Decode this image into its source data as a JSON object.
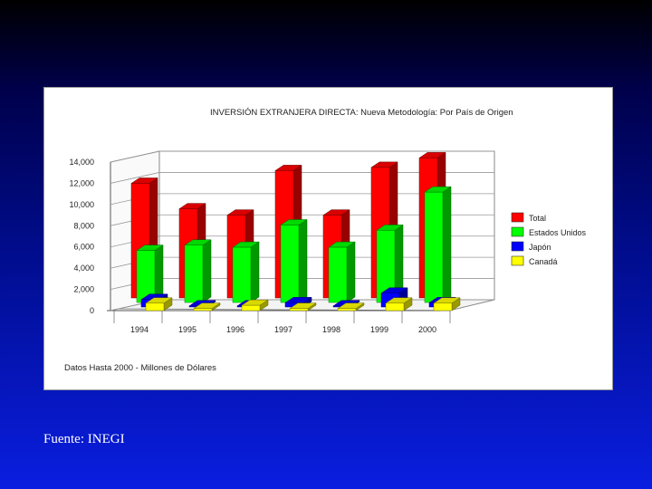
{
  "source": "Fuente: INEGI",
  "chart_data": {
    "type": "bar",
    "title": "INVERSIÓN EXTRANJERA DIRECTA: Nueva Metodología: Por País de Origen",
    "note": "Datos Hasta 2000 - Millones de Dólares",
    "categories": [
      "1994",
      "1995",
      "1996",
      "1997",
      "1998",
      "1999",
      "2000"
    ],
    "ylim": [
      0,
      14000
    ],
    "yticks": [
      "0",
      "2,000",
      "4,000",
      "6,000",
      "8,000",
      "10,000",
      "12,000",
      "14,000"
    ],
    "grid": true,
    "legend_position": "right",
    "series": [
      {
        "name": "Total",
        "color": "#ff0000",
        "values": [
          10800,
          8400,
          7800,
          12000,
          7800,
          12300,
          13200
        ]
      },
      {
        "name": "Estados Unidos",
        "color": "#00ff00",
        "values": [
          4900,
          5400,
          5200,
          7300,
          5200,
          6800,
          10400
        ]
      },
      {
        "name": "Japón",
        "color": "#0000ff",
        "values": [
          700,
          100,
          100,
          400,
          100,
          1300,
          400
        ]
      },
      {
        "name": "Canadá",
        "color": "#ffff00",
        "values": [
          700,
          200,
          500,
          200,
          200,
          700,
          700
        ]
      }
    ]
  }
}
